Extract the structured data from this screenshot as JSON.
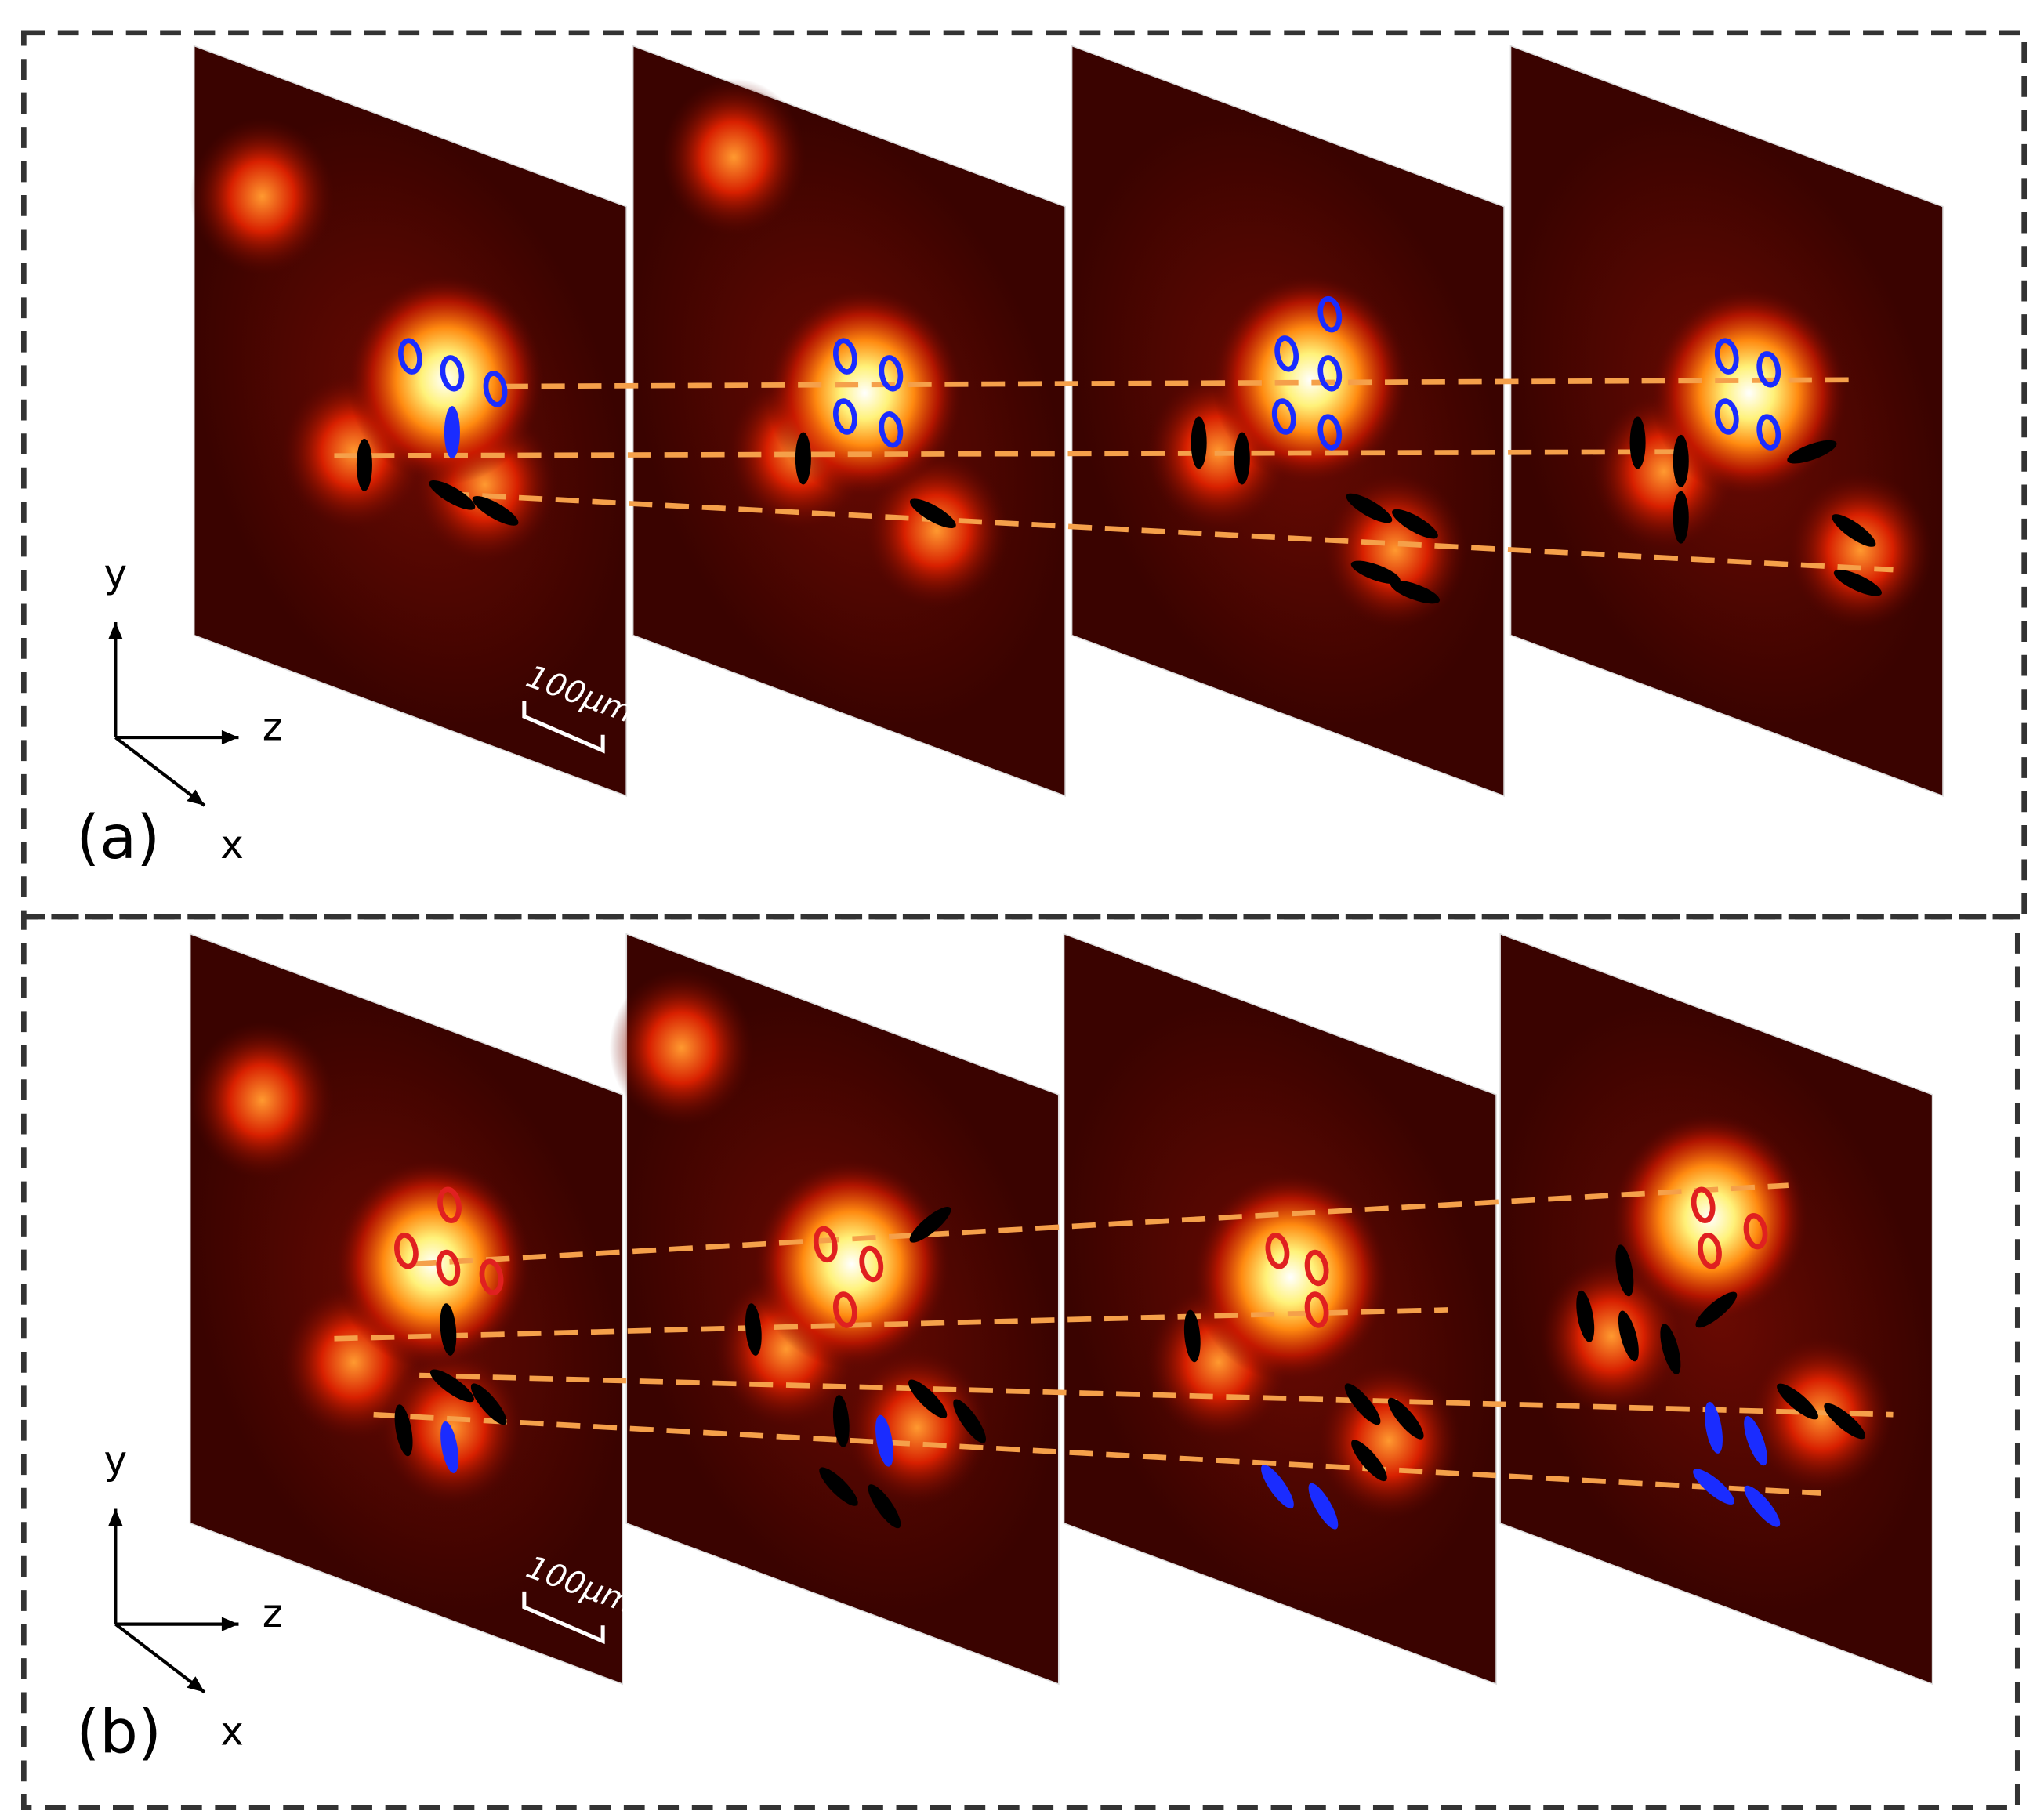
{
  "panels": [
    {
      "label": "(a)",
      "axes": {
        "y": "y",
        "z": "z",
        "x": "x"
      },
      "scale_bar": "100μm"
    },
    {
      "label": "(b)",
      "axes": {
        "y": "y",
        "z": "z",
        "x": "x"
      },
      "scale_bar": "100μm"
    }
  ]
}
